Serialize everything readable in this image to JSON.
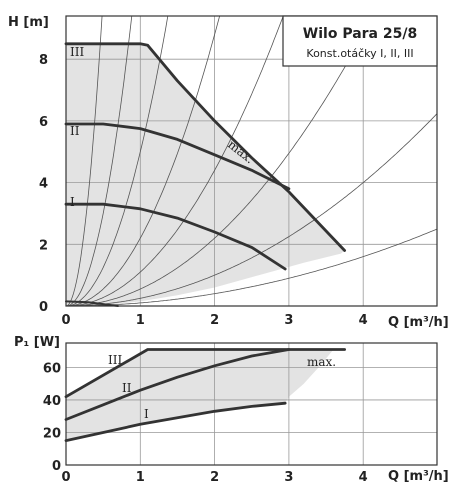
{
  "chart_data": [
    {
      "type": "line",
      "title": "Wilo Para 25/8",
      "subtitle": "Konst.otáčky  I, II, III",
      "ylabel": "H [m]",
      "xlabel": "Q [m³/h]",
      "xlim": [
        0,
        5
      ],
      "ylim": [
        0,
        9.4
      ],
      "x_ticks": [
        "0",
        "1",
        "2",
        "3",
        "4"
      ],
      "y_ticks": [
        "0",
        "2",
        "4",
        "6",
        "8"
      ],
      "grid": true,
      "series": [
        {
          "name": "III",
          "x": [
            0,
            1.0,
            1.1,
            1.5,
            2.0,
            2.5,
            3.0,
            3.75
          ],
          "y": [
            8.5,
            8.5,
            8.45,
            7.3,
            6.0,
            4.8,
            3.7,
            1.8
          ]
        },
        {
          "name": "II",
          "x": [
            0,
            0.5,
            1.0,
            1.5,
            2.0,
            2.5,
            3.0
          ],
          "y": [
            5.9,
            5.9,
            5.75,
            5.4,
            4.9,
            4.4,
            3.8
          ]
        },
        {
          "name": "I",
          "x": [
            0,
            0.5,
            1.0,
            1.5,
            2.0,
            2.5,
            2.95
          ],
          "y": [
            3.3,
            3.3,
            3.15,
            2.85,
            2.4,
            1.9,
            1.2
          ]
        },
        {
          "name": "",
          "x": [
            0,
            0.3,
            0.7
          ],
          "y": [
            0.15,
            0.12,
            0.0
          ]
        }
      ],
      "max_label": "max.",
      "system_curve_k": [
        40,
        12,
        5,
        2.2,
        1.1,
        0.55,
        0.25,
        0.1
      ],
      "shaded_region": {
        "x": [
          0,
          1.0,
          1.1,
          1.5,
          2.0,
          2.5,
          3.0,
          3.75,
          3.7,
          3.2,
          2.6,
          2.0,
          1.5,
          1.0,
          0.6,
          0.3,
          0
        ],
        "y": [
          8.5,
          8.5,
          8.45,
          7.3,
          6.0,
          4.8,
          3.7,
          1.8,
          1.7,
          1.4,
          1.0,
          0.6,
          0.35,
          0.15,
          0.05,
          0,
          0
        ]
      }
    },
    {
      "type": "line",
      "ylabel": "P₁ [W]",
      "xlabel": "Q [m³/h]",
      "xlim": [
        0,
        5
      ],
      "ylim": [
        0,
        75
      ],
      "x_ticks": [
        "0",
        "1",
        "2",
        "3",
        "4"
      ],
      "y_ticks": [
        "0",
        "20",
        "40",
        "60"
      ],
      "grid": true,
      "series": [
        {
          "name": "III",
          "x": [
            0,
            1.1,
            3.75
          ],
          "y": [
            42,
            71,
            71
          ]
        },
        {
          "name": "II",
          "x": [
            0,
            0.5,
            1.0,
            1.5,
            2.0,
            2.5,
            3.0
          ],
          "y": [
            28,
            37,
            46,
            54,
            61,
            67,
            71
          ]
        },
        {
          "name": "I",
          "x": [
            0,
            0.5,
            1.0,
            1.5,
            2.0,
            2.5,
            2.95
          ],
          "y": [
            15,
            20,
            25,
            29,
            33,
            36,
            38
          ]
        }
      ],
      "max_label": "max.",
      "shaded_region": {
        "x": [
          0,
          1.1,
          3.6,
          3.4,
          3.2,
          3.0,
          2.95,
          2.5,
          2.0,
          1.5,
          1.0,
          0.5,
          0
        ],
        "y": [
          42,
          71,
          71,
          60,
          50,
          42,
          38,
          36,
          33,
          29,
          25,
          20,
          15
        ]
      }
    }
  ]
}
